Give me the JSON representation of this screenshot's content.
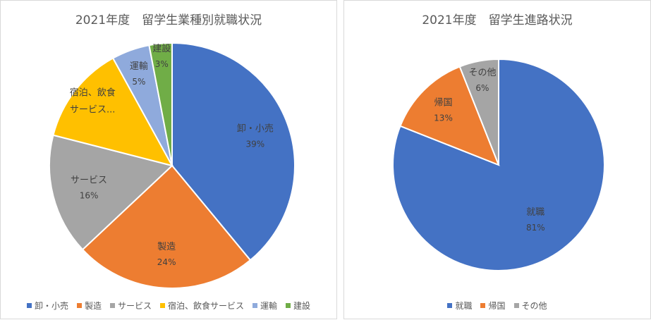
{
  "chart_data": [
    {
      "type": "pie",
      "title": "2021年度　留学生業種別就職状況",
      "categories": [
        "卸・小売",
        "製造",
        "サービス",
        "宿泊、飲食サービス",
        "運輸",
        "建設"
      ],
      "values": [
        39,
        24,
        16,
        13,
        5,
        3
      ],
      "data_labels": [
        {
          "name": "卸・小売",
          "pct": "39%"
        },
        {
          "name": "製造",
          "pct": "24%"
        },
        {
          "name": "サービス",
          "pct": "16%"
        },
        {
          "name": "宿泊、飲食",
          "name2": "サービス...",
          "pct": ""
        },
        {
          "name": "運輸",
          "pct": "5%"
        },
        {
          "name": "建設",
          "pct": "3%"
        }
      ],
      "colors": [
        "#4472C4",
        "#ED7D31",
        "#A5A5A5",
        "#FFC000",
        "#8FAADC",
        "#70AD47"
      ],
      "legend_position": "bottom"
    },
    {
      "type": "pie",
      "title": "2021年度　留学生進路状況",
      "categories": [
        "就職",
        "帰国",
        "その他"
      ],
      "values": [
        81,
        13,
        6
      ],
      "data_labels": [
        {
          "name": "就職",
          "pct": "81%"
        },
        {
          "name": "帰国",
          "pct": "13%"
        },
        {
          "name": "その他",
          "pct": "6%"
        }
      ],
      "colors": [
        "#4472C4",
        "#ED7D31",
        "#A5A5A5"
      ],
      "legend_position": "bottom"
    }
  ]
}
